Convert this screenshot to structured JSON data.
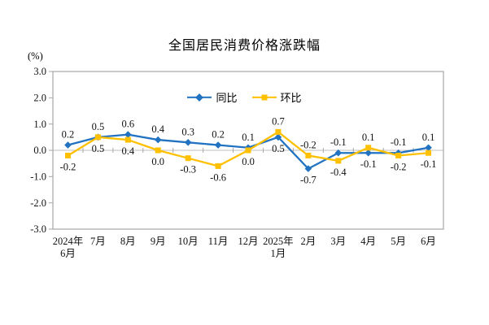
{
  "page": {
    "background": "#ffffff"
  },
  "chart_data": {
    "type": "line",
    "title": "全国居民消费价格涨跌幅",
    "unit_label": "(%)",
    "categories": [
      "2024年6月",
      "7月",
      "8月",
      "9月",
      "10月",
      "11月",
      "12月",
      "2025年1月",
      "2月",
      "3月",
      "4月",
      "5月",
      "6月"
    ],
    "x_tick_label_lines": [
      [
        "2024年",
        "6月"
      ],
      [
        "7月"
      ],
      [
        "8月"
      ],
      [
        "9月"
      ],
      [
        "10月"
      ],
      [
        "11月"
      ],
      [
        "12月"
      ],
      [
        "2025年",
        "1月"
      ],
      [
        "2月"
      ],
      [
        "3月"
      ],
      [
        "4月"
      ],
      [
        "5月"
      ],
      [
        "6月"
      ]
    ],
    "series": [
      {
        "name": "同比",
        "color": "#2173C2",
        "marker": "diamond",
        "values": [
          0.2,
          0.5,
          0.6,
          0.4,
          0.3,
          0.2,
          0.1,
          0.5,
          -0.7,
          -0.1,
          -0.1,
          -0.1,
          0.1
        ]
      },
      {
        "name": "环比",
        "color": "#FFC000",
        "marker": "square",
        "values": [
          -0.2,
          0.5,
          0.4,
          0.0,
          -0.3,
          -0.6,
          0.0,
          0.7,
          -0.2,
          -0.4,
          0.1,
          -0.2,
          -0.1
        ]
      }
    ],
    "ylim": [
      -3.0,
      3.0
    ],
    "yticks": [
      3.0,
      2.0,
      1.0,
      0.0,
      -1.0,
      -2.0,
      -3.0
    ],
    "grid": false,
    "legend_position": "top-center",
    "data_labels": true,
    "data_label_format": "one-decimal"
  },
  "colors": {
    "plot_border": "#A6A6A6",
    "zero_line": "#BFBFBF",
    "tick": "#A6A6A6",
    "text": "#111111"
  }
}
